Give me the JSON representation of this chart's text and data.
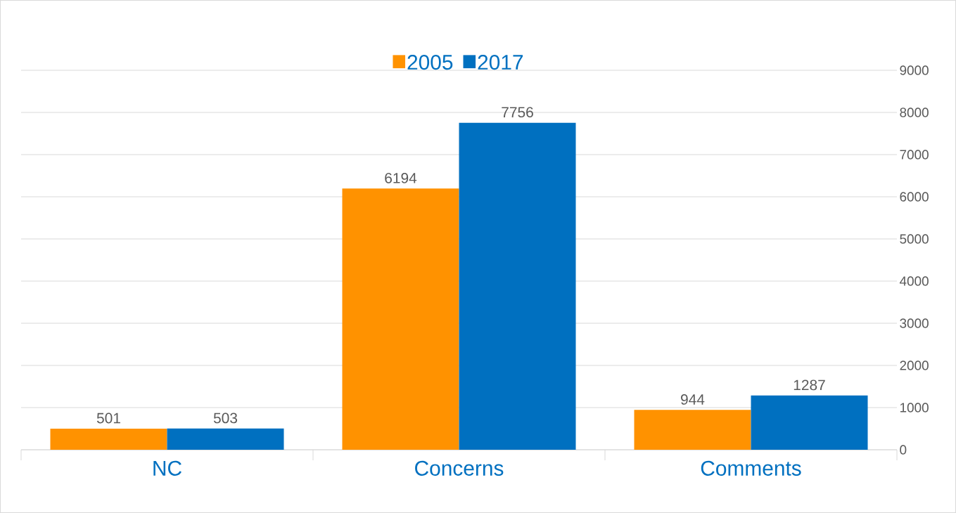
{
  "chart_data": {
    "type": "bar",
    "categories": [
      "NC",
      "Concerns",
      "Comments"
    ],
    "series": [
      {
        "name": "2005",
        "color": "#ff9200",
        "values": [
          501,
          6194,
          944
        ]
      },
      {
        "name": "2017",
        "color": "#0070c0",
        "values": [
          503,
          7756,
          1287
        ]
      }
    ],
    "ylim": [
      0,
      9000
    ],
    "yticks": [
      0,
      1000,
      2000,
      3000,
      4000,
      5000,
      6000,
      7000,
      8000,
      9000
    ],
    "grid": "y",
    "legend": "top",
    "data_labels": true
  }
}
